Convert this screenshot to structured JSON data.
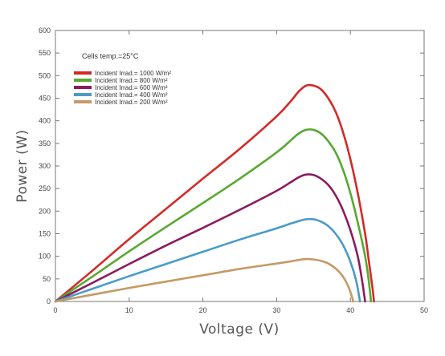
{
  "chart_data": {
    "type": "line",
    "title": "",
    "xlabel": "Voltage (V)",
    "ylabel": "Power (W)",
    "xlim": [
      0,
      50
    ],
    "ylim": [
      0,
      600
    ],
    "xticks": [
      0,
      10,
      20,
      30,
      40,
      50
    ],
    "yticks": [
      0,
      50,
      100,
      150,
      200,
      250,
      300,
      350,
      400,
      450,
      500,
      550,
      600
    ],
    "grid": false,
    "legend_position": "top-left",
    "annotation": "Cells temp.=25°C",
    "series": [
      {
        "name": "Incident Irrad.= 1000 W/m²",
        "color": "#d42a27",
        "points": [
          [
            0,
            0
          ],
          [
            5,
            68
          ],
          [
            10,
            138
          ],
          [
            15,
            205
          ],
          [
            20,
            272
          ],
          [
            25,
            338
          ],
          [
            30,
            410
          ],
          [
            32,
            445
          ],
          [
            33,
            465
          ],
          [
            34,
            478
          ],
          [
            35,
            478
          ],
          [
            36,
            470
          ],
          [
            37,
            450
          ],
          [
            38,
            420
          ],
          [
            39,
            375
          ],
          [
            40,
            315
          ],
          [
            41,
            240
          ],
          [
            42,
            150
          ],
          [
            42.5,
            90
          ],
          [
            43,
            30
          ],
          [
            43.2,
            0
          ]
        ]
      },
      {
        "name": "Incident Irrad.= 800 W/m²",
        "color": "#59a831",
        "points": [
          [
            0,
            0
          ],
          [
            5,
            55
          ],
          [
            10,
            111
          ],
          [
            15,
            165
          ],
          [
            20,
            218
          ],
          [
            25,
            272
          ],
          [
            30,
            330
          ],
          [
            32,
            358
          ],
          [
            33,
            372
          ],
          [
            34,
            380
          ],
          [
            35,
            380
          ],
          [
            36,
            372
          ],
          [
            37,
            355
          ],
          [
            38,
            330
          ],
          [
            39,
            292
          ],
          [
            40,
            240
          ],
          [
            41,
            175
          ],
          [
            42,
            100
          ],
          [
            42.5,
            45
          ],
          [
            42.8,
            0
          ]
        ]
      },
      {
        "name": "Incident Irrad.= 600 W/m²",
        "color": "#8b1b5e",
        "points": [
          [
            0,
            0
          ],
          [
            5,
            41
          ],
          [
            10,
            83
          ],
          [
            15,
            124
          ],
          [
            20,
            163
          ],
          [
            25,
            203
          ],
          [
            30,
            245
          ],
          [
            32,
            265
          ],
          [
            33,
            275
          ],
          [
            34,
            281
          ],
          [
            35,
            280
          ],
          [
            36,
            272
          ],
          [
            37,
            258
          ],
          [
            38,
            235
          ],
          [
            39,
            202
          ],
          [
            40,
            158
          ],
          [
            41,
            100
          ],
          [
            41.6,
            45
          ],
          [
            42,
            0
          ]
        ]
      },
      {
        "name": "Incident Irrad.= 400 W/m²",
        "color": "#4a9bc9",
        "points": [
          [
            0,
            0
          ],
          [
            5,
            28
          ],
          [
            10,
            56
          ],
          [
            15,
            83
          ],
          [
            20,
            110
          ],
          [
            25,
            137
          ],
          [
            30,
            162
          ],
          [
            32,
            173
          ],
          [
            33,
            178
          ],
          [
            34,
            182
          ],
          [
            35,
            182
          ],
          [
            36,
            177
          ],
          [
            37,
            167
          ],
          [
            38,
            150
          ],
          [
            39,
            125
          ],
          [
            40,
            88
          ],
          [
            40.8,
            45
          ],
          [
            41.3,
            0
          ]
        ]
      },
      {
        "name": "Incident Irrad.= 200 W/m²",
        "color": "#c49a66",
        "points": [
          [
            0,
            0
          ],
          [
            5,
            15
          ],
          [
            10,
            30
          ],
          [
            15,
            44
          ],
          [
            20,
            58
          ],
          [
            25,
            72
          ],
          [
            30,
            84
          ],
          [
            32,
            89
          ],
          [
            33,
            92
          ],
          [
            34,
            94
          ],
          [
            35,
            93
          ],
          [
            36,
            90
          ],
          [
            37,
            84
          ],
          [
            38,
            73
          ],
          [
            39,
            55
          ],
          [
            39.8,
            30
          ],
          [
            40.4,
            0
          ]
        ]
      }
    ]
  }
}
